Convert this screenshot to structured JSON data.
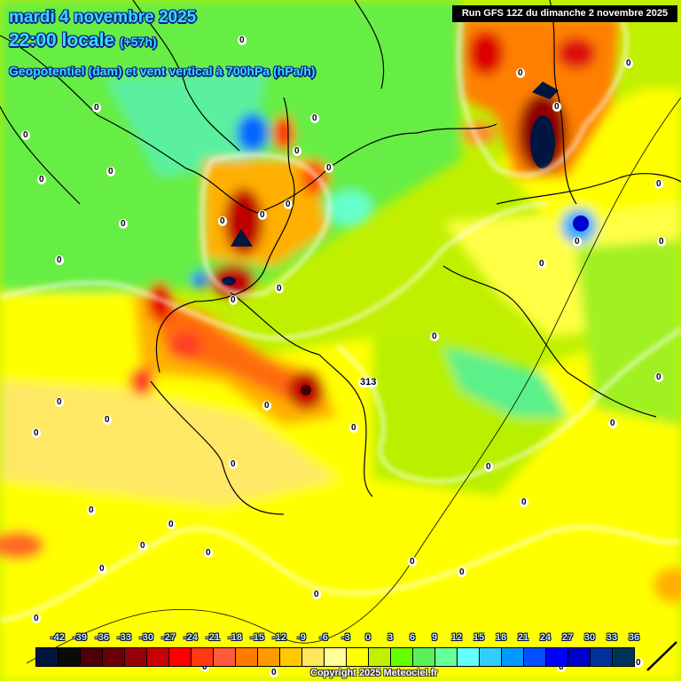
{
  "header": {
    "date_line": "mardi 4 novembre 2025",
    "time_line": "22:00 locale",
    "lead_time": "(+57h)",
    "parameter_line": "Geopotentiel (dam) et vent vertical à 700hPa (hPa/h)"
  },
  "run_info": "Run GFS 12Z du dimanche 2 novembre 2025",
  "legend": {
    "ticks": [
      "-42",
      "-39",
      "-36",
      "-33",
      "-30",
      "-27",
      "-24",
      "-21",
      "-18",
      "-15",
      "-12",
      "-9",
      "-6",
      "-3",
      "0",
      "3",
      "6",
      "9",
      "12",
      "15",
      "18",
      "21",
      "24",
      "27",
      "30",
      "33",
      "36"
    ],
    "colors": [
      "#001540",
      "#0a0a0a",
      "#4d0008",
      "#6a0006",
      "#960006",
      "#c80008",
      "#ff0000",
      "#ff3a10",
      "#ff5a3a",
      "#ff7a00",
      "#ff9a00",
      "#ffc800",
      "#ffe65a",
      "#ffff9a",
      "#ffff00",
      "#c0f000",
      "#66ff00",
      "#5af05a",
      "#66ff99",
      "#66ffff",
      "#33ccff",
      "#0099ff",
      "#0050ff",
      "#0000ff",
      "#0000c8",
      "#003399",
      "#00335a"
    ]
  },
  "map_labels": {
    "contour_value": "0",
    "geopotential_label": "313"
  },
  "copyright": "Copyright 2025 Meteociel.fr"
}
